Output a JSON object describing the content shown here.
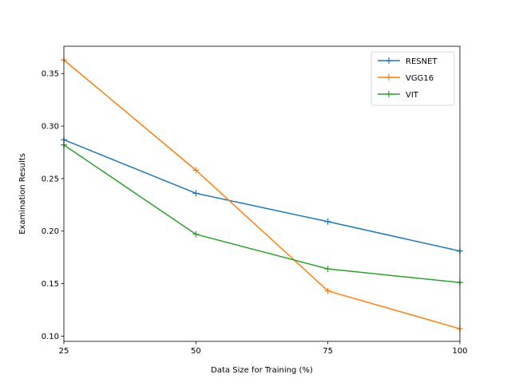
{
  "chart_data": {
    "type": "line",
    "title": "",
    "xlabel": "Data Size for Training (%)",
    "ylabel": "Examination Results",
    "x": [
      25,
      50,
      75,
      100
    ],
    "xticks": [
      "25",
      "50",
      "75",
      "100"
    ],
    "yticks": [
      "0.10",
      "0.15",
      "0.20",
      "0.25",
      "0.30",
      "0.35"
    ],
    "xlim": [
      25,
      100
    ],
    "ylim": [
      0.095,
      0.376
    ],
    "grid": false,
    "legend_position": "top-right",
    "marker": "+",
    "series": [
      {
        "name": "RESNET",
        "color": "#1f77b4",
        "values": [
          0.287,
          0.236,
          0.209,
          0.181
        ]
      },
      {
        "name": "VGG16",
        "color": "#ff7f0e",
        "values": [
          0.363,
          0.258,
          0.143,
          0.107
        ]
      },
      {
        "name": "VIT",
        "color": "#2ca02c",
        "values": [
          0.282,
          0.197,
          0.164,
          0.151
        ]
      }
    ]
  }
}
